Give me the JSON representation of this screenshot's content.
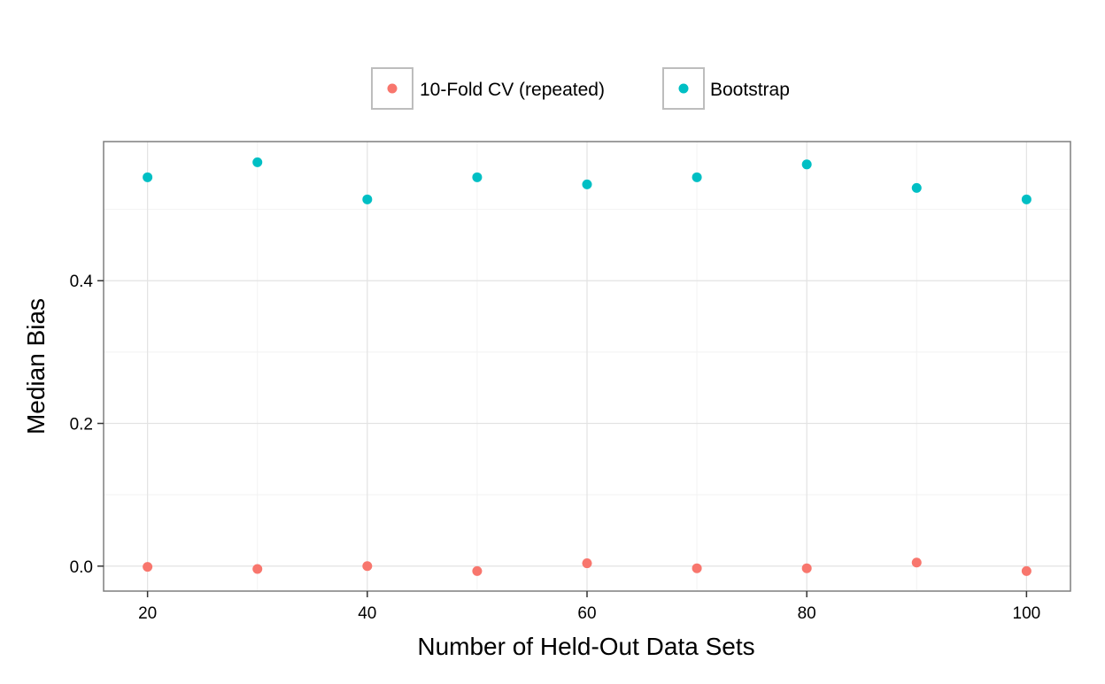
{
  "chart_data": {
    "type": "scatter",
    "title": "",
    "xlabel": "Number of Held-Out Data Sets",
    "ylabel": "Median Bias",
    "xlim": [
      16,
      104
    ],
    "ylim": [
      -0.035,
      0.595
    ],
    "x_ticks": [
      20,
      40,
      60,
      80,
      100
    ],
    "y_ticks": [
      0.0,
      0.2,
      0.4
    ],
    "y_tick_labels": [
      "0.0",
      "0.2",
      "0.4"
    ],
    "x_minor_ticks": [
      30,
      50,
      70,
      90
    ],
    "y_minor_ticks": [
      0.1,
      0.3,
      0.5
    ],
    "grid": true,
    "legend_position": "top",
    "series": [
      {
        "name": "10-Fold CV (repeated)",
        "color": "#F8766D",
        "x": [
          20,
          30,
          40,
          50,
          60,
          70,
          80,
          90,
          100
        ],
        "y": [
          -0.001,
          -0.004,
          0.0,
          -0.007,
          0.004,
          -0.003,
          -0.003,
          0.005,
          -0.007
        ]
      },
      {
        "name": "Bootstrap",
        "color": "#00BFC4",
        "x": [
          20,
          30,
          40,
          50,
          60,
          70,
          80,
          90,
          100
        ],
        "y": [
          0.545,
          0.566,
          0.514,
          0.545,
          0.535,
          0.545,
          0.563,
          0.53,
          0.514
        ]
      }
    ]
  }
}
